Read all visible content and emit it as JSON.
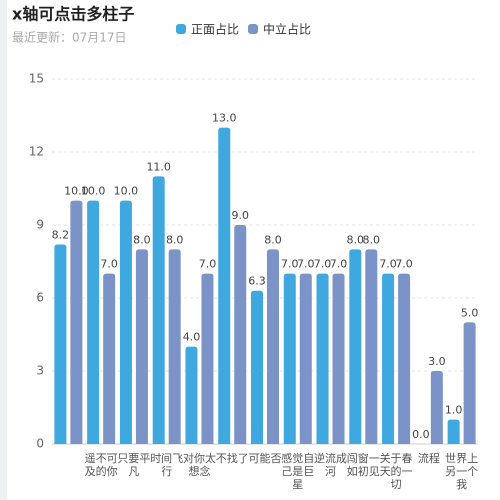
{
  "chart_data": {
    "type": "bar",
    "title": "x轴可点击多柱子",
    "subtitle": "最近更新：07月17日",
    "categories": [
      null,
      "遥不可及的你",
      "只要平凡",
      "时间飞行",
      "对你太想念",
      "不找了",
      "可能否",
      "感觉自己是巨星",
      "逆流成河",
      "闯窗一如初见",
      "关于春天的一切",
      "流程",
      "世界上另一个我"
    ],
    "series": [
      {
        "name": "正面占比",
        "color": "#3ea8df",
        "values": [
          8.2,
          10,
          10,
          11,
          4,
          13,
          6.3,
          7,
          7,
          8,
          7,
          0,
          1
        ],
        "value_labels": [
          "8.2",
          "10.0",
          "10.0",
          "11.0",
          "4.0",
          "13.0",
          "6.3",
          "7.0",
          "7.0",
          "8.0",
          "7.0",
          "0.0",
          "1.0"
        ]
      },
      {
        "name": "中立占比",
        "color": "#7b93c7",
        "values": [
          10,
          7,
          8,
          8,
          7,
          9,
          8,
          7,
          7,
          8,
          7,
          3,
          5
        ],
        "value_labels": [
          "10.0",
          "7.0",
          "8.0",
          "8.0",
          "7.0",
          "9.0",
          "8.0",
          "7.0",
          "7.0",
          "8.0",
          "7.0",
          "3.0",
          "5.0"
        ]
      }
    ],
    "ylim": [
      0,
      15
    ],
    "yticks": [
      0,
      3,
      6,
      9,
      12,
      15
    ],
    "grid": true
  }
}
